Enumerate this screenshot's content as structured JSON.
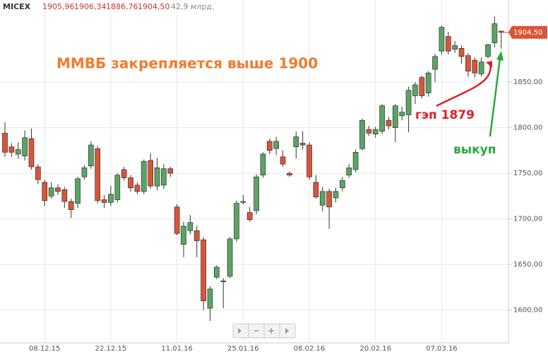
{
  "chart_data": {
    "type": "candlestick",
    "header": {
      "symbol": "MICEX",
      "quotes": [
        "1905,96",
        "1906,34",
        "1886,76",
        "1904,50"
      ],
      "volume": "42,9 млрд."
    },
    "annotations": [
      "ММВБ закрепляется выше 1900",
      "гэп 1879",
      "выкуп"
    ],
    "last_label": "1904,50",
    "categories": [
      null,
      null,
      null,
      null,
      null,
      null,
      "08.12.15",
      null,
      null,
      null,
      null,
      null,
      null,
      null,
      null,
      null,
      "22.12.15",
      null,
      null,
      null,
      null,
      null,
      null,
      null,
      null,
      null,
      "11.01.16",
      null,
      null,
      null,
      null,
      null,
      null,
      null,
      null,
      null,
      "25.01.16",
      null,
      null,
      null,
      null,
      null,
      null,
      null,
      null,
      null,
      "08.02.16",
      null,
      null,
      null,
      null,
      null,
      null,
      null,
      null,
      null,
      "20.02.16",
      null,
      null,
      null,
      null,
      null,
      null,
      null,
      null,
      null,
      "07.03.16",
      null,
      null,
      null,
      null,
      null,
      null,
      null,
      null,
      null
    ],
    "open": [
      1794,
      1779,
      1771,
      1769,
      1788,
      1757,
      1740,
      1725,
      1734,
      1732,
      1719,
      1717,
      1746,
      1758,
      1777,
      1721,
      1718,
      1721,
      1754,
      1745,
      1737,
      1730,
      1764,
      1736,
      1737,
      1755,
      1713,
      1672,
      1687,
      1687,
      1677,
      1602,
      1636,
      1631,
      1637,
      1678,
      1718,
      1707,
      1709,
      1748,
      1785,
      1777,
      1768,
      1750,
      1779,
      1783,
      1781,
      1740,
      1715,
      1730,
      1723,
      1734,
      1748,
      1754,
      1777,
      1798,
      1793,
      1796,
      1808,
      1800,
      1813,
      1814,
      1835,
      1855,
      1838,
      1864,
      1884,
      1900,
      1886,
      1887,
      1879,
      1874,
      1859,
      1878,
      1893,
      1905.96
    ],
    "high": [
      1806,
      1783,
      1784,
      1797,
      1799,
      1760,
      1743,
      1740,
      1738,
      1735,
      1722,
      1746,
      1759,
      1785,
      1780,
      1726,
      1736,
      1750,
      1757,
      1748,
      1740,
      1765,
      1772,
      1767,
      1760,
      1757,
      1716,
      1697,
      1704,
      1692,
      1680,
      1626,
      1649,
      1635,
      1680,
      1720,
      1726,
      1713,
      1749,
      1773,
      1788,
      1790,
      1775,
      1752,
      1796,
      1796,
      1784,
      1748,
      1735,
      1733,
      1734,
      1746,
      1760,
      1776,
      1810,
      1802,
      1801,
      1826,
      1812,
      1826,
      1823,
      1845,
      1850,
      1857,
      1862,
      1881,
      1912,
      1905,
      1895,
      1890,
      1882,
      1877,
      1877,
      1892,
      1922,
      1906.34
    ],
    "low": [
      1768,
      1768,
      1766,
      1764,
      1754,
      1738,
      1714,
      1722,
      1726,
      1712,
      1701,
      1712,
      1743,
      1755,
      1717,
      1712,
      1714,
      1718,
      1742,
      1730,
      1727,
      1727,
      1733,
      1731,
      1733,
      1746,
      1682,
      1658,
      1683,
      1658,
      1600,
      1588,
      1634,
      1602,
      1635,
      1675,
      1716,
      1697,
      1705,
      1745,
      1771,
      1770,
      1757,
      1746,
      1766,
      1776,
      1743,
      1722,
      1708,
      1689,
      1718,
      1730,
      1745,
      1751,
      1775,
      1791,
      1789,
      1793,
      1798,
      1784,
      1808,
      1795,
      1826,
      1832,
      1834,
      1850,
      1880,
      1880,
      1882,
      1870,
      1856,
      1855,
      1856,
      1876,
      1888,
      1886.76
    ],
    "close": [
      1773,
      1773,
      1776,
      1789,
      1757,
      1743,
      1720,
      1734,
      1730,
      1719,
      1710,
      1744,
      1756,
      1781,
      1720,
      1718,
      1727,
      1748,
      1745,
      1734,
      1730,
      1763,
      1736,
      1756,
      1755,
      1750,
      1684,
      1692,
      1696,
      1676,
      1610,
      1623,
      1647,
      1632,
      1678,
      1717,
      1719,
      1699,
      1746,
      1771,
      1775,
      1785,
      1760,
      1748,
      1790,
      1781,
      1746,
      1724,
      1730,
      1713,
      1730,
      1742,
      1756,
      1773,
      1808,
      1794,
      1798,
      1824,
      1802,
      1824,
      1817,
      1841,
      1847,
      1835,
      1860,
      1878,
      1910,
      1884,
      1890,
      1878,
      1862,
      1860,
      1872,
      1891,
      1914,
      1904.5
    ],
    "up_color": "#5aa465",
    "down_color": "#d9553a",
    "ylim": [
      1564,
      1940
    ],
    "yticks": [
      {
        "value": 1600,
        "label": "1600,00"
      },
      {
        "value": 1650,
        "label": "1650,00"
      },
      {
        "value": 1700,
        "label": "1700,00"
      },
      {
        "value": 1750,
        "label": "1750,00"
      },
      {
        "value": 1800,
        "label": "1800,00"
      },
      {
        "value": 1850,
        "label": "1850,00"
      }
    ],
    "grid": true
  }
}
